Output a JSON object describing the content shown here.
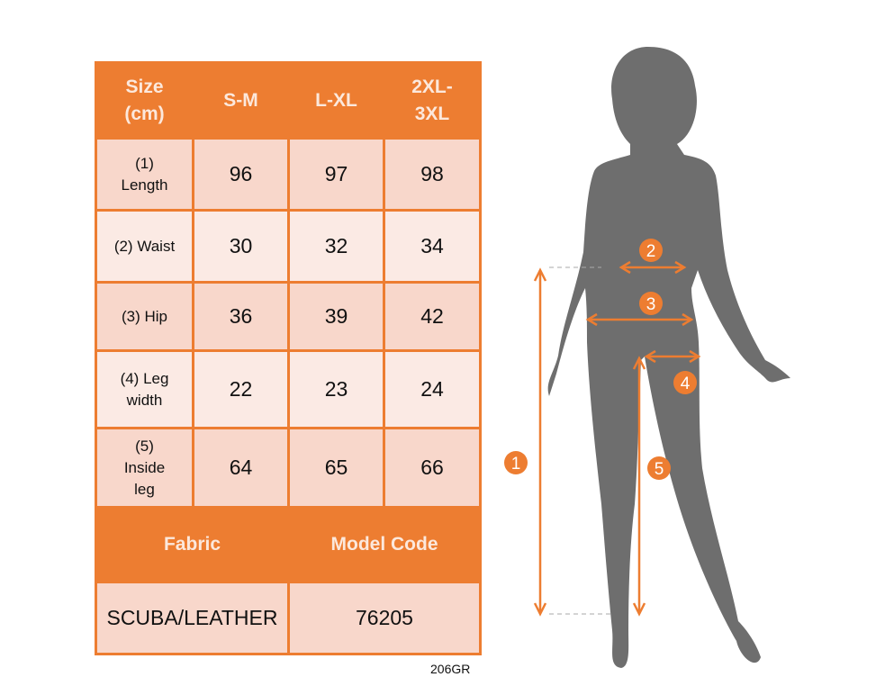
{
  "table": {
    "header": [
      "Size\n(cm)",
      "S-M",
      "L-XL",
      "2XL-\n3XL"
    ],
    "rows": [
      {
        "label": "(1)\nLength",
        "values": [
          "96",
          "97",
          "98"
        ]
      },
      {
        "label": "(2) Waist",
        "values": [
          "30",
          "32",
          "34"
        ]
      },
      {
        "label": "(3) Hip",
        "values": [
          "36",
          "39",
          "42"
        ]
      },
      {
        "label": "(4) Leg\nwidth",
        "values": [
          "22",
          "23",
          "24"
        ]
      },
      {
        "label": "(5)\nInside\nleg",
        "values": [
          "64",
          "65",
          "66"
        ]
      }
    ],
    "footer_header": [
      "Fabric",
      "Model Code"
    ],
    "footer_values": [
      "SCUBA/LEATHER",
      "76205"
    ]
  },
  "product_code": "206GR",
  "figure": {
    "markers": [
      "1",
      "2",
      "3",
      "4",
      "5"
    ]
  },
  "colors": {
    "accent": "#ED7D31",
    "row_dark": "#F8D7CB",
    "row_light": "#FBEAE4",
    "silhouette": "#6E6E6E"
  }
}
